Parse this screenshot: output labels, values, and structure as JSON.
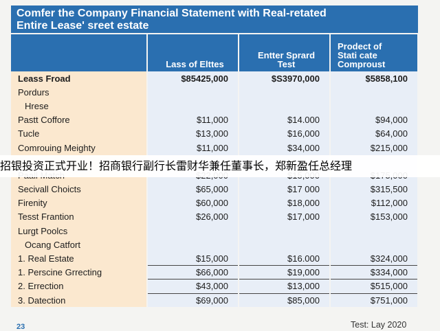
{
  "title": {
    "line1": "Comfer the Company Financial Statement with Real-retated",
    "line2": "Entire Lease' sreet estate"
  },
  "table": {
    "headers": [
      "",
      "Lass of Elttes",
      "Entter Sprard\nTest",
      "Prodect of\nStati cate\nComproust"
    ],
    "rows": [
      {
        "label": "Leass Froad",
        "values": [
          "$85425,000",
          "$S3970,000",
          "$5858,100"
        ],
        "indent": false
      },
      {
        "label": "Pordurs",
        "values": [
          "",
          "",
          ""
        ],
        "indent": false
      },
      {
        "label": "Hrese",
        "values": [
          "",
          "",
          ""
        ],
        "indent": true
      },
      {
        "label": "Pastt Coffore",
        "values": [
          "$11,000",
          "$14.000",
          "$94,000"
        ],
        "indent": false
      },
      {
        "label": "Tucle",
        "values": [
          "$13,000",
          "$16,000",
          "$64,000"
        ],
        "indent": false
      },
      {
        "label": "Comrouing Meighty",
        "values": [
          "$11,000",
          "$34,000",
          "$215,000"
        ],
        "indent": false
      },
      {
        "label": "",
        "values": [
          "",
          "",
          ""
        ],
        "indent": false
      },
      {
        "label": "Paall Match",
        "values": [
          "$22,000",
          "$15,000",
          "$175,000"
        ],
        "indent": false
      },
      {
        "label": "Secivall Choicts",
        "values": [
          "$65,000",
          "$17 000",
          "$315,500"
        ],
        "indent": false
      },
      {
        "label": "Firenity",
        "values": [
          "$60,000",
          "$18,000",
          "$112,000"
        ],
        "indent": false
      },
      {
        "label": "Tesst Frantion",
        "values": [
          "$26,000",
          "$17,000",
          "$153,000"
        ],
        "indent": false
      },
      {
        "label": "Lurgt Poolcs",
        "values": [
          "",
          "",
          ""
        ],
        "indent": false
      },
      {
        "label": "Ocang Catfort",
        "values": [
          "",
          "",
          ""
        ],
        "indent": true
      },
      {
        "label": "1. Real Estate",
        "values": [
          "$15,000",
          "$16.000",
          "$324,000"
        ],
        "indent": false
      },
      {
        "label": "1. Perscine Grrecting",
        "values": [
          "$66,000",
          "$19,000",
          "$334,000"
        ],
        "indent": false
      },
      {
        "label": "2. Errection",
        "values": [
          "$43,000",
          "$13,000",
          "$515,000"
        ],
        "indent": false
      },
      {
        "label": "3. Datection",
        "values": [
          "$69,000",
          "$85,000",
          "$751,000"
        ],
        "indent": false
      }
    ]
  },
  "overlay_text": "招银投资正式开业！招商银行副行长雷财华兼任董事长，郑新盈任总经理",
  "page_number": "23",
  "footnote": "Test: Lay 2020"
}
